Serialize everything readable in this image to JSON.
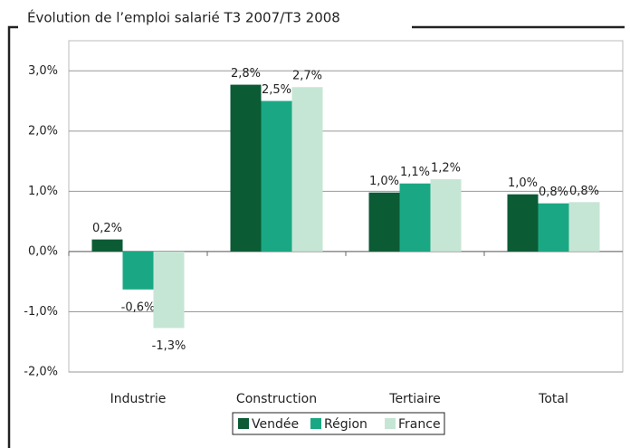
{
  "chart_data": {
    "type": "bar",
    "title": "Évolution de l’emploi salarié T3 2007/T3 2008",
    "categories": [
      "Industrie",
      "Construction",
      "Tertiaire",
      "Total"
    ],
    "series": [
      {
        "name": "Vendée",
        "color": "#0b5b35",
        "values": [
          0.2,
          2.77,
          0.98,
          0.95
        ],
        "value_labels": [
          "0,2%",
          "2,8%",
          "1,0%",
          "1,0%"
        ]
      },
      {
        "name": "Région",
        "color": "#1aa884",
        "values": [
          -0.63,
          2.5,
          1.13,
          0.8
        ],
        "value_labels": [
          "-0,6%",
          "2,5%",
          "1,1%",
          "0,8%"
        ]
      },
      {
        "name": "France",
        "color": "#c6e6d5",
        "values": [
          -1.27,
          2.73,
          1.2,
          0.82
        ],
        "value_labels": [
          "-1,3%",
          "2,7%",
          "1,2%",
          "0,8%"
        ]
      }
    ],
    "ylim": [
      -2,
      3.5
    ],
    "yticks": [
      {
        "value": -2,
        "label": "-2,0%"
      },
      {
        "value": -1,
        "label": "-1,0%"
      },
      {
        "value": 0,
        "label": "0,0%"
      },
      {
        "value": 1,
        "label": "1,0%"
      },
      {
        "value": 2,
        "label": "2,0%"
      },
      {
        "value": 3,
        "label": "3,0%"
      }
    ],
    "grid": true,
    "legend": "bottom"
  }
}
